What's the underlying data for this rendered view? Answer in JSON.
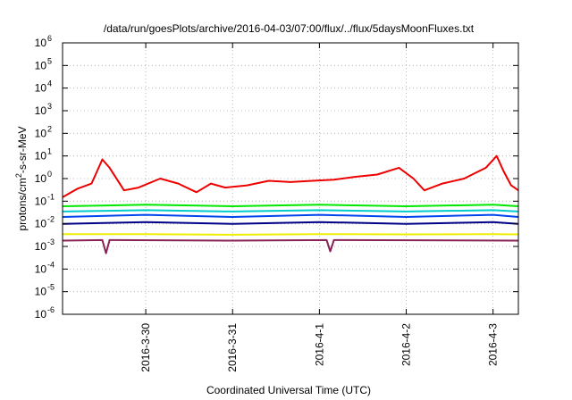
{
  "chart_data": {
    "type": "line",
    "title": "/data/run/goesPlots/archive/2016-04-03/07:00/flux/../flux/5daysMoonFluxes.txt",
    "xlabel": "Coordinated Universal Time (UTC)",
    "ylabel": {
      "base": "protons/cm",
      "sup": "2",
      "rest": "-s-sr-MeV"
    },
    "y_scale": "log",
    "ylim": [
      1e-06,
      1000000.0
    ],
    "y_ticks": [
      {
        "value": 1e-06,
        "base": "10",
        "exp": "-6"
      },
      {
        "value": 1e-05,
        "base": "10",
        "exp": "-5"
      },
      {
        "value": 0.0001,
        "base": "10",
        "exp": "-4"
      },
      {
        "value": 0.001,
        "base": "10",
        "exp": "-3"
      },
      {
        "value": 0.01,
        "base": "10",
        "exp": "-2"
      },
      {
        "value": 0.1,
        "base": "10",
        "exp": "-1"
      },
      {
        "value": 1.0,
        "base": "10",
        "exp": "0"
      },
      {
        "value": 10.0,
        "base": "10",
        "exp": "1"
      },
      {
        "value": 100.0,
        "base": "10",
        "exp": "2"
      },
      {
        "value": 1000.0,
        "base": "10",
        "exp": "3"
      },
      {
        "value": 10000.0,
        "base": "10",
        "exp": "4"
      },
      {
        "value": 100000.0,
        "base": "10",
        "exp": "5"
      },
      {
        "value": 1000000.0,
        "base": "10",
        "exp": "6"
      }
    ],
    "x_range_days": [
      "2016-03-29 01:00",
      "2016-04-03 07:00"
    ],
    "x_ticks": [
      "2016-3-30",
      "2016-3-31",
      "2016-4-1",
      "2016-4-2",
      "2016-4-3"
    ],
    "grid": true,
    "series": [
      {
        "color": "#ee0000",
        "x": [
          "2016-03-29 01:00",
          "2016-03-29 05:00",
          "2016-03-29 09:00",
          "2016-03-29 12:00",
          "2016-03-29 14:00",
          "2016-03-29 18:00",
          "2016-03-29 22:00",
          "2016-03-30 04:00",
          "2016-03-30 09:00",
          "2016-03-30 14:00",
          "2016-03-30 18:00",
          "2016-03-30 22:00",
          "2016-03-31 04:00",
          "2016-03-31 10:00",
          "2016-03-31 16:00",
          "2016-03-31 22:00",
          "2016-04-01 04:00",
          "2016-04-01 10:00",
          "2016-04-01 16:00",
          "2016-04-01 22:00",
          "2016-04-02 02:00",
          "2016-04-02 05:00",
          "2016-04-02 10:00",
          "2016-04-02 16:00",
          "2016-04-02 22:00",
          "2016-04-03 01:00",
          "2016-04-03 03:00",
          "2016-04-03 05:00",
          "2016-04-03 07:00"
        ],
        "values": [
          0.15,
          0.35,
          0.6,
          7,
          3,
          0.3,
          0.4,
          1.0,
          0.6,
          0.25,
          0.6,
          0.4,
          0.5,
          0.8,
          0.7,
          0.8,
          0.9,
          1.2,
          1.5,
          3.0,
          1.0,
          0.3,
          0.6,
          1.0,
          3.0,
          10,
          2.0,
          0.5,
          0.3
        ]
      },
      {
        "color": "#00e800",
        "x": [
          "2016-03-29 01:00",
          "2016-03-30 00:00",
          "2016-03-31 00:00",
          "2016-04-01 00:00",
          "2016-04-02 00:00",
          "2016-04-03 00:00",
          "2016-04-03 07:00"
        ],
        "values": [
          0.06,
          0.07,
          0.06,
          0.07,
          0.06,
          0.07,
          0.06
        ]
      },
      {
        "color": "#00cccc",
        "x": [
          "2016-03-29 01:00",
          "2016-03-30 00:00",
          "2016-03-31 00:00",
          "2016-04-01 00:00",
          "2016-04-02 00:00",
          "2016-04-03 00:00",
          "2016-04-03 07:00"
        ],
        "values": [
          0.035,
          0.04,
          0.035,
          0.04,
          0.035,
          0.04,
          0.035
        ]
      },
      {
        "color": "#0044ee",
        "x": [
          "2016-03-29 01:00",
          "2016-03-30 00:00",
          "2016-03-31 00:00",
          "2016-04-01 00:00",
          "2016-04-02 00:00",
          "2016-04-03 00:00",
          "2016-04-03 07:00"
        ],
        "values": [
          0.02,
          0.025,
          0.02,
          0.025,
          0.02,
          0.025,
          0.02
        ]
      },
      {
        "color": "#000088",
        "x": [
          "2016-03-29 01:00",
          "2016-03-30 00:00",
          "2016-03-31 00:00",
          "2016-04-01 00:00",
          "2016-04-02 00:00",
          "2016-04-03 00:00",
          "2016-04-03 07:00"
        ],
        "values": [
          0.01,
          0.012,
          0.01,
          0.012,
          0.01,
          0.012,
          0.01
        ]
      },
      {
        "color": "#eeee00",
        "x": [
          "2016-03-29 01:00",
          "2016-03-30 00:00",
          "2016-03-31 00:00",
          "2016-04-01 00:00",
          "2016-04-02 00:00",
          "2016-04-03 00:00",
          "2016-04-03 07:00"
        ],
        "values": [
          0.0035,
          0.0035,
          0.0033,
          0.0035,
          0.0034,
          0.0035,
          0.0034
        ]
      },
      {
        "color": "#882255",
        "x": [
          "2016-03-29 01:00",
          "2016-03-29 12:00",
          "2016-03-29 13:00",
          "2016-03-29 14:00",
          "2016-03-31 00:00",
          "2016-04-01 02:00",
          "2016-04-01 03:00",
          "2016-04-01 04:00",
          "2016-04-03 07:00"
        ],
        "values": [
          0.0018,
          0.0019,
          0.0005,
          0.0019,
          0.0018,
          0.0019,
          0.0006,
          0.0019,
          0.0018
        ]
      }
    ]
  }
}
